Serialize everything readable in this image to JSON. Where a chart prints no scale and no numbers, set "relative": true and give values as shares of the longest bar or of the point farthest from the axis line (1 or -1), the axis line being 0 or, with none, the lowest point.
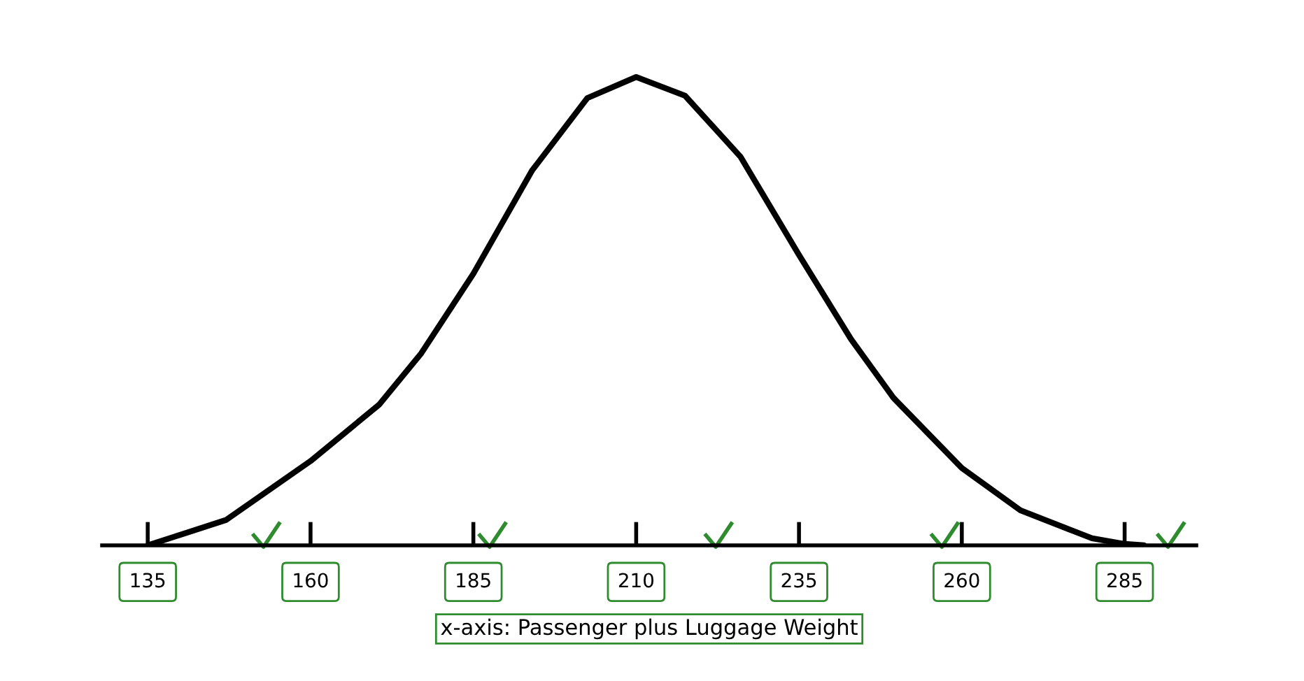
{
  "chart_data": {
    "type": "line",
    "relative": true,
    "xlabel": "x-axis: Passenger plus Luggage Weight",
    "x": [
      135,
      147,
      160,
      170.5,
      177,
      185,
      194,
      202.5,
      210,
      217.5,
      226,
      235,
      243,
      249.5,
      260,
      269,
      280,
      285,
      288
    ],
    "values": [
      0.0,
      0.054,
      0.18,
      0.3,
      0.41,
      0.58,
      0.8,
      0.955,
      1.0,
      0.96,
      0.83,
      0.62,
      0.44,
      0.315,
      0.165,
      0.075,
      0.015,
      0.003,
      0.0
    ],
    "color": "#000000",
    "xlim": [
      128,
      296
    ],
    "xticks": [
      135,
      160,
      185,
      210,
      235,
      260,
      285
    ],
    "tick_labels": "x"
  }
}
